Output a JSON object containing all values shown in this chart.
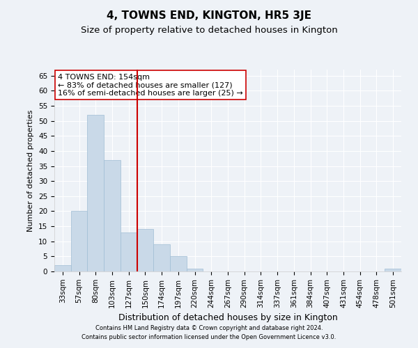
{
  "title": "4, TOWNS END, KINGTON, HR5 3JE",
  "subtitle": "Size of property relative to detached houses in Kington",
  "xlabel": "Distribution of detached houses by size in Kington",
  "ylabel": "Number of detached properties",
  "categories": [
    "33sqm",
    "57sqm",
    "80sqm",
    "103sqm",
    "127sqm",
    "150sqm",
    "174sqm",
    "197sqm",
    "220sqm",
    "244sqm",
    "267sqm",
    "290sqm",
    "314sqm",
    "337sqm",
    "361sqm",
    "384sqm",
    "407sqm",
    "431sqm",
    "454sqm",
    "478sqm",
    "501sqm"
  ],
  "values": [
    2,
    20,
    52,
    37,
    13,
    14,
    9,
    5,
    1,
    0,
    0,
    0,
    0,
    0,
    0,
    0,
    0,
    0,
    0,
    0,
    1
  ],
  "bar_color": "#c9d9e8",
  "bar_edge_color": "#a0bdd4",
  "vline_x": 4.5,
  "vline_color": "#cc0000",
  "annotation_title": "4 TOWNS END: 154sqm",
  "annotation_line1": "← 83% of detached houses are smaller (127)",
  "annotation_line2": "16% of semi-detached houses are larger (25) →",
  "annotation_box_color": "#ffffff",
  "annotation_box_edge_color": "#cc0000",
  "ylim": [
    0,
    67
  ],
  "yticks": [
    0,
    5,
    10,
    15,
    20,
    25,
    30,
    35,
    40,
    45,
    50,
    55,
    60,
    65
  ],
  "footnote1": "Contains HM Land Registry data © Crown copyright and database right 2024.",
  "footnote2": "Contains public sector information licensed under the Open Government Licence v3.0.",
  "bg_color": "#eef2f7",
  "grid_color": "#ffffff",
  "title_fontsize": 11,
  "subtitle_fontsize": 9.5,
  "tick_fontsize": 7.5,
  "ylabel_fontsize": 8,
  "xlabel_fontsize": 9,
  "footnote_fontsize": 6,
  "annotation_fontsize": 8
}
